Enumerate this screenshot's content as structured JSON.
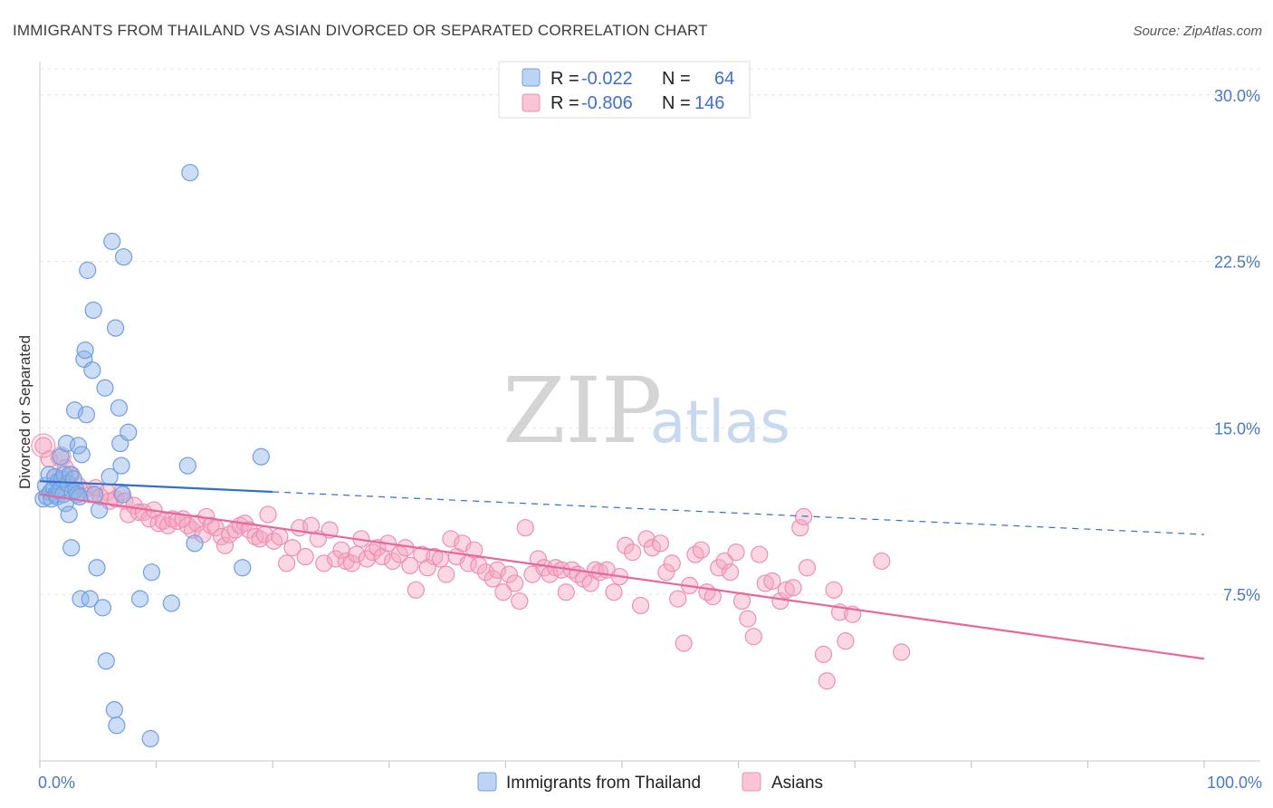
{
  "chart_data": {
    "type": "scatter",
    "title": "IMMIGRANTS FROM THAILAND VS ASIAN DIVORCED OR SEPARATED CORRELATION CHART",
    "source": "Source: ZipAtlas.com",
    "ylabel": "Divorced or Separated",
    "xlim": [
      0,
      100
    ],
    "ylim": [
      0,
      31.5
    ],
    "y_ticks": [
      {
        "value": 7.5,
        "label": "7.5%"
      },
      {
        "value": 15.0,
        "label": "15.0%"
      },
      {
        "value": 22.5,
        "label": "22.5%"
      },
      {
        "value": 30.0,
        "label": "30.0%"
      }
    ],
    "x_tick_labels": {
      "min": "0.0%",
      "max": "100.0%"
    },
    "grid": true,
    "legend": {
      "placement": "top-center",
      "rows": [
        {
          "r_label": "R =",
          "r_value": "-0.022",
          "n_label": "N =",
          "n_value": "64"
        },
        {
          "r_label": "R =",
          "r_value": "-0.806",
          "n_label": "N =",
          "n_value": "146"
        }
      ]
    },
    "watermark": {
      "zip": "ZIP",
      "atlas": "atlas"
    },
    "series": [
      {
        "name": "Immigrants from Thailand",
        "color": "#8db4e8",
        "edge": "#6f9fe0",
        "line_color": "#2f6fd0",
        "trend": {
          "x0": 0,
          "y0": 12.6,
          "x1": 100,
          "y1": 10.2,
          "solid_until": 20
        },
        "points": [
          [
            0.3,
            11.8
          ],
          [
            0.5,
            12.4
          ],
          [
            0.6,
            11.9
          ],
          [
            0.8,
            12.9
          ],
          [
            0.9,
            12.1
          ],
          [
            1.0,
            11.8
          ],
          [
            1.2,
            12.3
          ],
          [
            1.3,
            12.8
          ],
          [
            1.4,
            12.0
          ],
          [
            1.5,
            11.9
          ],
          [
            1.6,
            12.6
          ],
          [
            1.7,
            12.2
          ],
          [
            1.8,
            13.7
          ],
          [
            1.9,
            12.7
          ],
          [
            2.0,
            12.0
          ],
          [
            2.1,
            12.9
          ],
          [
            2.2,
            11.6
          ],
          [
            2.3,
            14.3
          ],
          [
            2.4,
            12.5
          ],
          [
            2.5,
            11.1
          ],
          [
            2.6,
            12.9
          ],
          [
            2.7,
            9.6
          ],
          [
            2.8,
            12.1
          ],
          [
            2.9,
            12.7
          ],
          [
            3.0,
            15.8
          ],
          [
            3.1,
            12.2
          ],
          [
            3.2,
            12.0
          ],
          [
            3.3,
            14.2
          ],
          [
            3.4,
            11.9
          ],
          [
            3.5,
            7.3
          ],
          [
            3.6,
            13.8
          ],
          [
            3.8,
            18.1
          ],
          [
            3.9,
            18.5
          ],
          [
            4.0,
            15.6
          ],
          [
            4.1,
            22.1
          ],
          [
            4.3,
            7.3
          ],
          [
            4.5,
            17.6
          ],
          [
            4.6,
            20.3
          ],
          [
            4.7,
            12.0
          ],
          [
            4.9,
            8.7
          ],
          [
            5.1,
            11.3
          ],
          [
            5.4,
            6.9
          ],
          [
            5.6,
            16.8
          ],
          [
            5.7,
            4.5
          ],
          [
            6.0,
            12.8
          ],
          [
            6.2,
            23.4
          ],
          [
            6.4,
            2.3
          ],
          [
            6.5,
            19.5
          ],
          [
            6.6,
            1.6
          ],
          [
            6.8,
            15.9
          ],
          [
            6.9,
            14.3
          ],
          [
            7.0,
            13.3
          ],
          [
            7.1,
            12.0
          ],
          [
            7.2,
            22.7
          ],
          [
            7.6,
            14.8
          ],
          [
            8.6,
            7.3
          ],
          [
            9.5,
            1.0
          ],
          [
            9.6,
            8.5
          ],
          [
            11.3,
            7.1
          ],
          [
            12.7,
            13.3
          ],
          [
            12.9,
            26.5
          ],
          [
            13.3,
            9.8
          ],
          [
            17.4,
            8.7
          ],
          [
            19.0,
            13.7
          ]
        ]
      },
      {
        "name": "Asians",
        "color": "#f3a6c2",
        "edge": "#ee8fb2",
        "line_color": "#e8679a",
        "trend": {
          "x0": 0,
          "y0": 12.0,
          "x1": 100,
          "y1": 4.6,
          "solid_until": 100
        },
        "points": [
          [
            0.3,
            14.2
          ],
          [
            0.8,
            13.6
          ],
          [
            1.3,
            12.8
          ],
          [
            1.8,
            13.7
          ],
          [
            2.2,
            13.2
          ],
          [
            2.7,
            12.9
          ],
          [
            3.3,
            12.4
          ],
          [
            3.8,
            12.2
          ],
          [
            4.4,
            12.0
          ],
          [
            4.8,
            12.3
          ],
          [
            5.2,
            11.9
          ],
          [
            5.8,
            12.1
          ],
          [
            6.0,
            11.7
          ],
          [
            6.5,
            11.8
          ],
          [
            7.0,
            12.1
          ],
          [
            7.3,
            11.7
          ],
          [
            7.6,
            11.1
          ],
          [
            8.1,
            11.5
          ],
          [
            8.5,
            11.2
          ],
          [
            8.9,
            11.2
          ],
          [
            9.4,
            10.9
          ],
          [
            9.8,
            11.3
          ],
          [
            10.2,
            10.7
          ],
          [
            10.6,
            10.8
          ],
          [
            11.0,
            10.6
          ],
          [
            11.4,
            10.9
          ],
          [
            11.8,
            10.8
          ],
          [
            12.3,
            10.9
          ],
          [
            12.7,
            10.6
          ],
          [
            13.1,
            10.4
          ],
          [
            13.5,
            10.7
          ],
          [
            14.0,
            10.2
          ],
          [
            14.3,
            11.0
          ],
          [
            14.7,
            10.6
          ],
          [
            15.1,
            10.5
          ],
          [
            15.6,
            10.1
          ],
          [
            15.9,
            9.7
          ],
          [
            16.3,
            10.2
          ],
          [
            16.8,
            10.4
          ],
          [
            17.2,
            10.6
          ],
          [
            17.6,
            10.7
          ],
          [
            18.0,
            10.4
          ],
          [
            18.5,
            10.1
          ],
          [
            18.9,
            10.0
          ],
          [
            19.3,
            10.2
          ],
          [
            19.6,
            11.1
          ],
          [
            20.1,
            9.9
          ],
          [
            20.6,
            10.1
          ],
          [
            21.2,
            8.9
          ],
          [
            21.7,
            9.6
          ],
          [
            22.3,
            10.5
          ],
          [
            22.8,
            9.2
          ],
          [
            23.3,
            10.6
          ],
          [
            23.9,
            10.0
          ],
          [
            24.4,
            8.9
          ],
          [
            24.9,
            10.4
          ],
          [
            25.4,
            9.1
          ],
          [
            25.9,
            9.5
          ],
          [
            26.3,
            9.0
          ],
          [
            26.8,
            8.9
          ],
          [
            27.2,
            9.3
          ],
          [
            27.6,
            10.0
          ],
          [
            28.1,
            9.1
          ],
          [
            28.6,
            9.4
          ],
          [
            29.0,
            9.6
          ],
          [
            29.4,
            9.2
          ],
          [
            29.9,
            9.8
          ],
          [
            30.3,
            9.0
          ],
          [
            30.9,
            9.3
          ],
          [
            31.4,
            9.6
          ],
          [
            31.8,
            8.8
          ],
          [
            32.3,
            7.7
          ],
          [
            32.8,
            9.3
          ],
          [
            33.3,
            8.7
          ],
          [
            33.9,
            9.2
          ],
          [
            34.4,
            9.1
          ],
          [
            34.9,
            8.4
          ],
          [
            35.3,
            10.0
          ],
          [
            35.8,
            9.2
          ],
          [
            36.3,
            9.8
          ],
          [
            36.8,
            8.9
          ],
          [
            37.3,
            9.5
          ],
          [
            37.7,
            8.8
          ],
          [
            38.3,
            8.5
          ],
          [
            38.9,
            8.2
          ],
          [
            39.3,
            8.6
          ],
          [
            39.8,
            7.6
          ],
          [
            40.3,
            8.4
          ],
          [
            40.8,
            8.0
          ],
          [
            41.2,
            7.2
          ],
          [
            41.7,
            10.5
          ],
          [
            42.3,
            8.4
          ],
          [
            42.8,
            9.1
          ],
          [
            43.3,
            8.7
          ],
          [
            43.8,
            8.4
          ],
          [
            44.3,
            8.7
          ],
          [
            44.8,
            8.6
          ],
          [
            45.2,
            7.6
          ],
          [
            45.7,
            8.6
          ],
          [
            46.2,
            8.4
          ],
          [
            46.7,
            8.2
          ],
          [
            47.3,
            8.0
          ],
          [
            47.7,
            8.6
          ],
          [
            48.1,
            8.5
          ],
          [
            48.7,
            8.6
          ],
          [
            49.3,
            7.6
          ],
          [
            49.8,
            8.3
          ],
          [
            50.3,
            9.7
          ],
          [
            50.9,
            9.4
          ],
          [
            51.6,
            7.0
          ],
          [
            52.1,
            10.0
          ],
          [
            52.6,
            9.6
          ],
          [
            53.3,
            9.8
          ],
          [
            53.8,
            8.5
          ],
          [
            54.3,
            8.9
          ],
          [
            54.8,
            7.3
          ],
          [
            55.3,
            5.3
          ],
          [
            55.8,
            7.9
          ],
          [
            56.3,
            9.3
          ],
          [
            56.8,
            9.5
          ],
          [
            57.3,
            7.6
          ],
          [
            57.8,
            7.4
          ],
          [
            58.3,
            8.7
          ],
          [
            58.8,
            9.0
          ],
          [
            59.3,
            8.5
          ],
          [
            59.8,
            9.4
          ],
          [
            60.3,
            7.2
          ],
          [
            60.8,
            6.4
          ],
          [
            61.3,
            5.6
          ],
          [
            61.8,
            9.3
          ],
          [
            62.3,
            8.0
          ],
          [
            62.9,
            8.1
          ],
          [
            63.6,
            7.2
          ],
          [
            64.1,
            7.7
          ],
          [
            64.7,
            7.8
          ],
          [
            65.3,
            10.5
          ],
          [
            65.6,
            11.0
          ],
          [
            65.9,
            8.7
          ],
          [
            67.3,
            4.8
          ],
          [
            67.6,
            3.6
          ],
          [
            68.2,
            7.7
          ],
          [
            68.7,
            6.7
          ],
          [
            69.2,
            5.4
          ],
          [
            69.8,
            6.6
          ],
          [
            72.3,
            9.0
          ],
          [
            74.0,
            4.9
          ]
        ]
      }
    ],
    "bottom_legend": [
      {
        "label": "Immigrants from Thailand"
      },
      {
        "label": "Asians"
      }
    ]
  }
}
